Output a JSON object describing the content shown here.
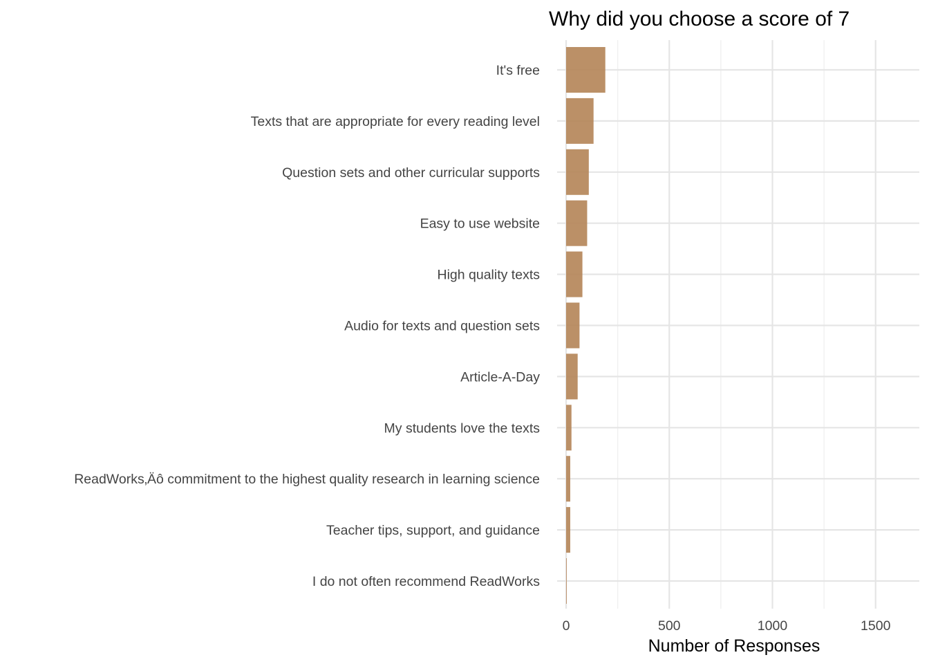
{
  "chart_data": {
    "type": "bar",
    "orientation": "horizontal",
    "title": "Why did you choose a score of 7",
    "xlabel": "Number of Responses",
    "ylabel": "",
    "categories": [
      "It's free",
      "Texts that are appropriate for every reading level",
      "Question sets and other curricular supports",
      "Easy to use website",
      "High quality texts",
      "Audio for texts and question sets",
      "Article-A-Day",
      "My students love the texts",
      "ReadWorks‚Äô commitment to the highest quality research in learning science",
      "Teacher tips, support, and guidance",
      "I do not often recommend ReadWorks"
    ],
    "values": [
      190,
      133,
      110,
      102,
      79,
      65,
      56,
      26,
      20,
      20,
      3
    ],
    "xlim": [
      0,
      1720
    ],
    "xticks": [
      0,
      500,
      1000,
      1500
    ],
    "xtick_labels": [
      "0",
      "500",
      "1000",
      "1500"
    ],
    "grid": true,
    "bar_color": "#b5875a"
  }
}
